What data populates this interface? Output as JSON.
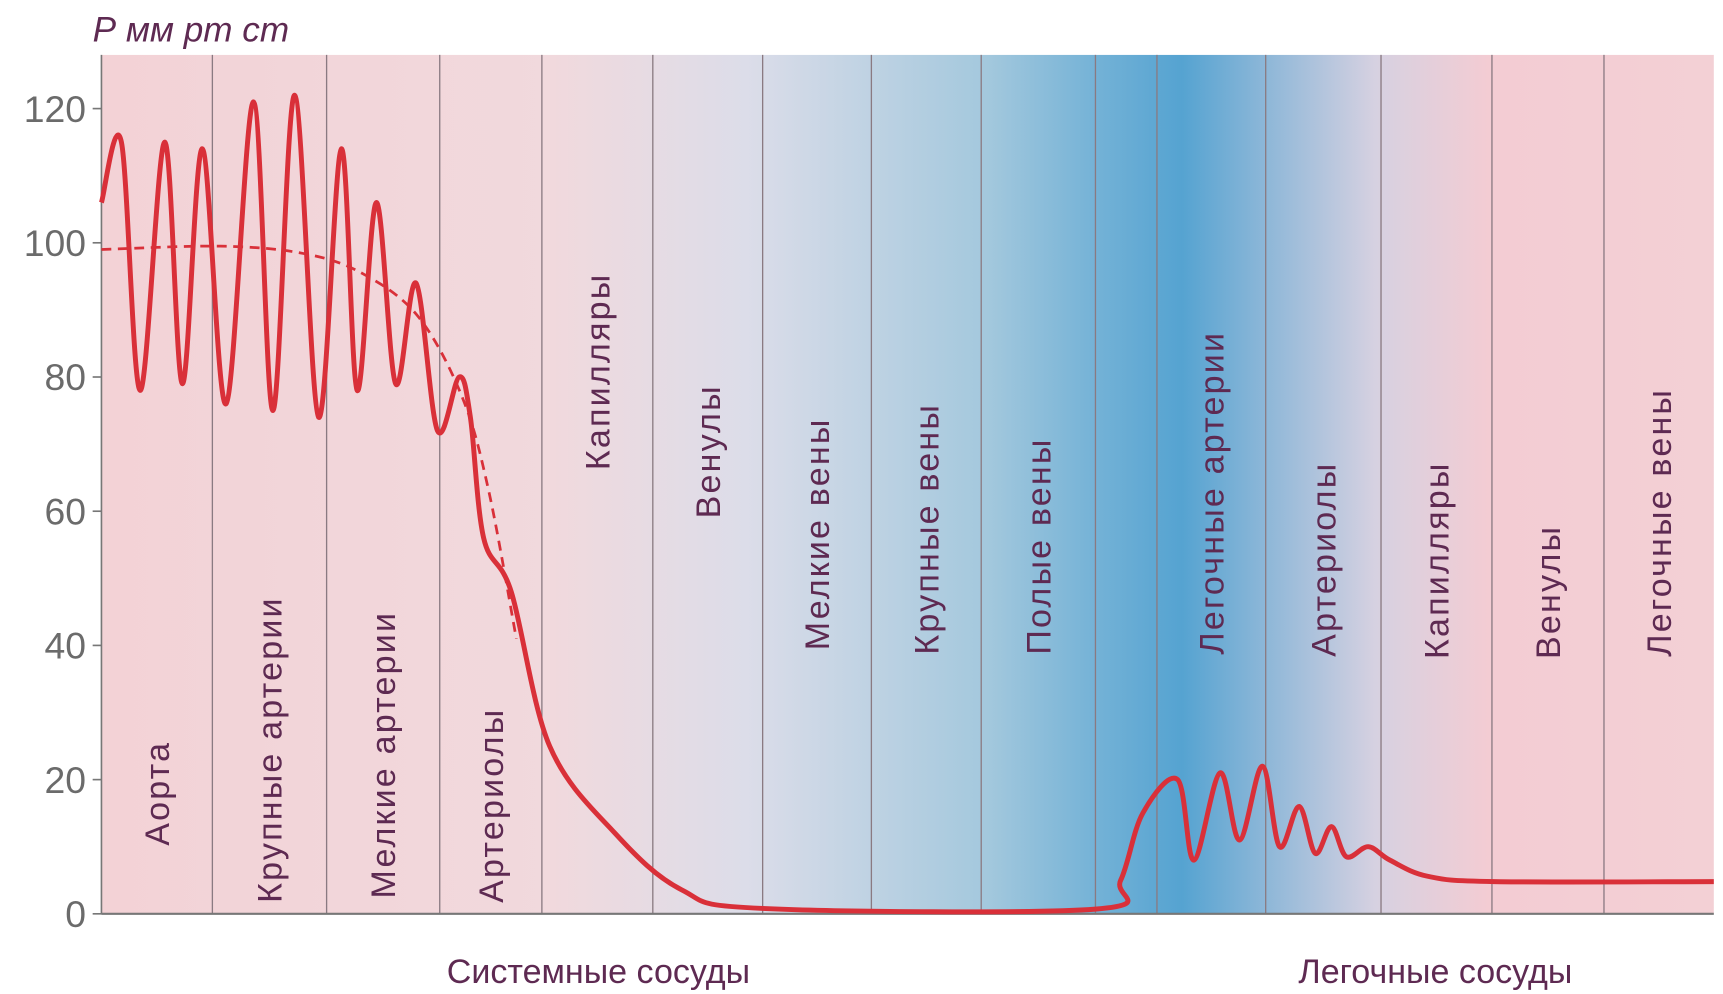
{
  "chart_data": {
    "type": "line",
    "y_label": "Р мм рт ст",
    "categories": [
      "Аорта",
      "Крупные артерии",
      "Мелкие артерии",
      "Артериолы",
      "Капилляры",
      "Венулы",
      "Мелкие вены",
      "Крупные вены",
      "Полые вены",
      null,
      "Легочные артерии",
      "Артериолы",
      "Капилляры",
      "Венулы",
      "Легочные вены"
    ],
    "groups": [
      {
        "label": "Системные сосуды",
        "from": 0,
        "to": 9
      },
      {
        "label": "Легочные сосуды",
        "from": 10,
        "to": 15
      }
    ],
    "ylim": [
      0,
      128
    ],
    "yticks": [
      0,
      20,
      40,
      60,
      80,
      100,
      120
    ],
    "xlim": [
      0,
      15
    ],
    "series": [
      {
        "color": "#d93039",
        "dashed": false,
        "x": [
          0,
          0.18,
          0.35,
          0.57,
          0.73,
          0.91,
          1.12,
          1.36,
          1.53,
          1.72,
          1.93,
          2.13,
          2.27,
          2.44,
          2.61,
          2.79,
          2.98,
          3.19,
          3.3,
          3.43,
          3.7,
          4.07,
          4.66,
          5.26,
          6.0,
          9.0,
          9.41,
          9.77,
          10.19,
          10.34,
          10.58,
          10.76,
          10.97,
          11.12,
          11.29,
          11.43,
          11.57,
          11.7,
          11.89,
          12.08,
          12.42,
          13.02,
          15
        ],
        "values": [
          106,
          115,
          78,
          115,
          79,
          114,
          76,
          121,
          75,
          122,
          74,
          114,
          78,
          106,
          79,
          94,
          72,
          80,
          74,
          56,
          48,
          25,
          12,
          3.6,
          0.8,
          0.7,
          5,
          15,
          20,
          8,
          21,
          11,
          22,
          10,
          16,
          9,
          13,
          8.5,
          10,
          8,
          5.6,
          4.8,
          4.8
        ]
      },
      {
        "color": "#d93039",
        "dashed": true,
        "x": [
          0,
          1.07,
          1.8,
          2.32,
          2.81,
          3.22,
          3.48,
          3.75
        ],
        "values": [
          99,
          99.5,
          98.4,
          95.4,
          89,
          77,
          63,
          41
        ]
      }
    ]
  }
}
